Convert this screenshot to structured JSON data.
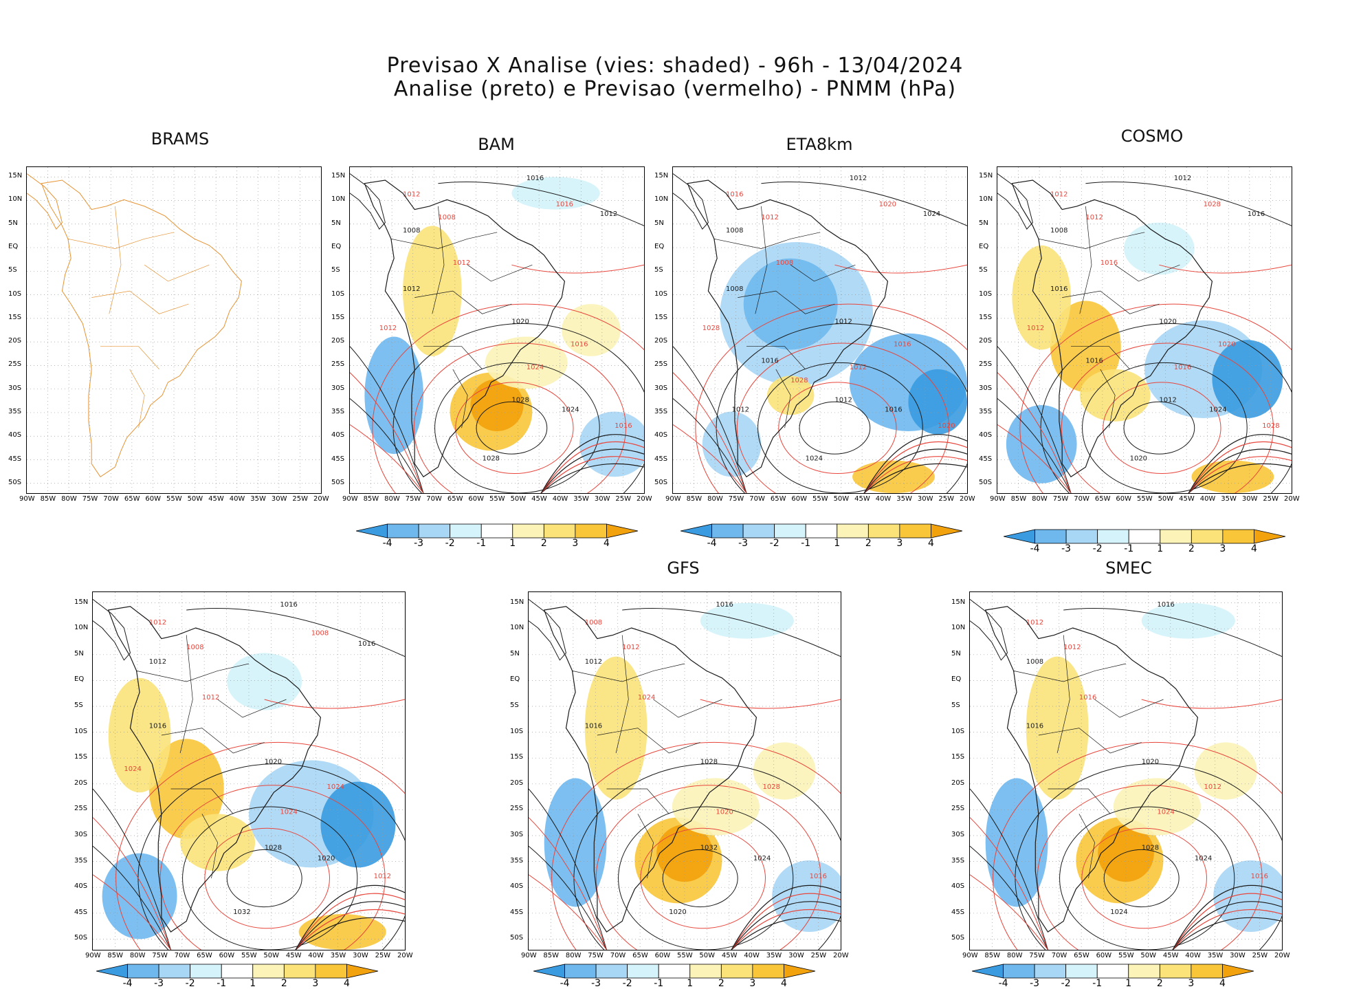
{
  "title": {
    "line1": "Previsao X Analise (vies: shaded) - 96h - 13/04/2024",
    "line2": "Analise (preto) e Previsao (vermelho) - PNMM (hPa)"
  },
  "lat_labels": [
    "15N",
    "10N",
    "5N",
    "EQ",
    "5S",
    "10S",
    "15S",
    "20S",
    "25S",
    "30S",
    "35S",
    "40S",
    "45S",
    "50S"
  ],
  "lon_labels": [
    "90W",
    "85W",
    "80W",
    "75W",
    "70W",
    "65W",
    "60W",
    "55W",
    "50W",
    "45W",
    "40W",
    "35W",
    "30W",
    "25W",
    "20W"
  ],
  "colorbar_labels": [
    "-4",
    "-3",
    "-2",
    "-1",
    "1",
    "2",
    "3",
    "4"
  ],
  "colors": {
    "neg4": "#3a9be0",
    "neg3": "#6fb8ee",
    "neg2": "#a8d6f5",
    "neg1": "#d4f3fb",
    "zero": "#ffffff",
    "pos1": "#fbf3b8",
    "pos2": "#fbe37a",
    "pos3": "#f9c63a",
    "pos4": "#f2a20c",
    "analysis": "#1a1a1a",
    "forecast": "#e8453b",
    "coast_brams": "#e69333"
  },
  "panels": [
    {
      "id": "brams",
      "name": "BRAMS",
      "bias": "none",
      "isobars": []
    },
    {
      "id": "bam",
      "name": "BAM",
      "bias": "warm",
      "isobars": [
        "1016",
        "1012",
        "1008",
        "1008",
        "1012",
        "1012",
        "1020",
        "1024",
        "1028",
        "1016",
        "1024",
        "1016",
        "1028",
        "1012",
        "1012",
        "1016"
      ]
    },
    {
      "id": "eta",
      "name": "ETA8km",
      "bias": "cold",
      "isobars": [
        "1012",
        "1016",
        "1008",
        "1012",
        "1008",
        "1008",
        "1012",
        "1012",
        "1012",
        "1016",
        "1016",
        "1020",
        "1024",
        "1028",
        "1024",
        "1020",
        "1016",
        "1028",
        "1012"
      ]
    },
    {
      "id": "cosmo",
      "name": "COSMO",
      "bias": "mixed",
      "isobars": [
        "1012",
        "1012",
        "1008",
        "1012",
        "1016",
        "1016",
        "1020",
        "1016",
        "1012",
        "1020",
        "1024",
        "1028",
        "1020",
        "1012",
        "1016",
        "1028",
        "1016"
      ]
    },
    {
      "id": "p5",
      "name": "",
      "bias": "mixed",
      "isobars": [
        "1016",
        "1012",
        "1012",
        "1008",
        "1016",
        "1012",
        "1020",
        "1024",
        "1028",
        "1024",
        "1020",
        "1012",
        "1032",
        "1024",
        "1016",
        "1008"
      ]
    },
    {
      "id": "gfs",
      "name": "GFS",
      "bias": "warm",
      "isobars": [
        "1016",
        "1008",
        "1012",
        "1012",
        "1016",
        "1024",
        "1028",
        "1020",
        "1032",
        "1028",
        "1024",
        "1016",
        "1020"
      ]
    },
    {
      "id": "smec",
      "name": "SMEC",
      "bias": "warm",
      "isobars": [
        "1016",
        "1012",
        "1008",
        "1012",
        "1016",
        "1016",
        "1020",
        "1024",
        "1028",
        "1012",
        "1024",
        "1016",
        "1024"
      ]
    }
  ]
}
